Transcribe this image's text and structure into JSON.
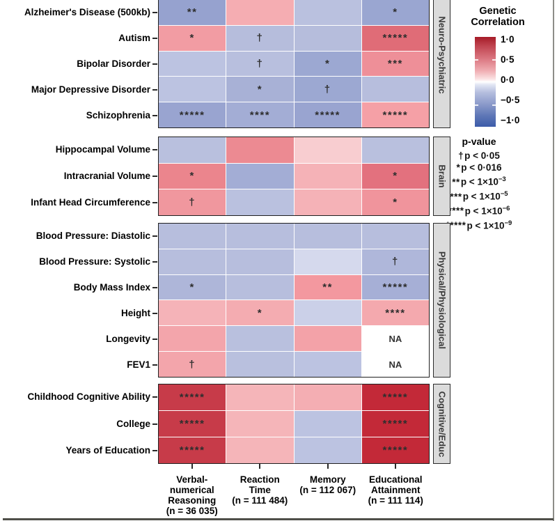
{
  "chart_data": {
    "type": "heatmap",
    "colorbar": {
      "title": "Genetic\nCorrelation",
      "ticks": [
        "1·0",
        "0·5",
        "0·0",
        "−0·5",
        "−1·0"
      ],
      "domain": [
        -1,
        1
      ],
      "high_color": "#A61B27",
      "mid_color": "#FFFFFF",
      "low_color": "#3D5CA9"
    },
    "pvalue_legend": {
      "title": "p-value",
      "entries": [
        {
          "sym": "†",
          "text": "p < 0·05",
          "exp": ""
        },
        {
          "sym": "*",
          "text": "p < 0·016",
          "exp": ""
        },
        {
          "sym": "**",
          "text": "p < 1×10",
          "exp": "−3"
        },
        {
          "sym": "***",
          "text": "p < 1×10",
          "exp": "−5"
        },
        {
          "sym": "****",
          "text": "p < 1×10",
          "exp": "−6"
        },
        {
          "sym": "*****",
          "text": "p < 1×10",
          "exp": "−9"
        }
      ]
    },
    "columns": [
      {
        "label": "Verbal-\nnumerical\nReasoning\n(n = 36 035)"
      },
      {
        "label": "Reaction\nTime\n(n = 111 484)"
      },
      {
        "label": "Memory\n(n = 112 067)"
      },
      {
        "label": "Educational\nAttainment\n(n = 111 114)"
      }
    ],
    "panels": [
      {
        "name": "Neuro-Psychiatric",
        "rows": [
          {
            "label": "Alzheimer's Disease (500kb)",
            "cells": [
              {
                "value": -0.32,
                "mark": "**",
                "color": "#96A2CF"
              },
              {
                "value": 0.22,
                "mark": "",
                "color": "#F5ADB2"
              },
              {
                "value": -0.15,
                "mark": "",
                "color": "#BAC1DF"
              },
              {
                "value": -0.3,
                "mark": "*",
                "color": "#9AA6D1"
              }
            ]
          },
          {
            "label": "Autism",
            "cells": [
              {
                "value": 0.3,
                "mark": "*",
                "color": "#F29CA3"
              },
              {
                "value": -0.17,
                "mark": "†",
                "color": "#B6BDDC"
              },
              {
                "value": -0.17,
                "mark": "",
                "color": "#B6BDDC"
              },
              {
                "value": 0.47,
                "mark": "*****",
                "color": "#E06C77"
              }
            ]
          },
          {
            "label": "Bipolar Disorder",
            "cells": [
              {
                "value": -0.14,
                "mark": "",
                "color": "#BCC3E1"
              },
              {
                "value": -0.16,
                "mark": "†",
                "color": "#B8BFDE"
              },
              {
                "value": -0.29,
                "mark": "*",
                "color": "#9CA8D2"
              },
              {
                "value": 0.33,
                "mark": "***",
                "color": "#EE8F98"
              }
            ]
          },
          {
            "label": "Major Depressive Disorder",
            "cells": [
              {
                "value": -0.14,
                "mark": "",
                "color": "#BCC3E1"
              },
              {
                "value": -0.24,
                "mark": "*",
                "color": "#A8B1D6"
              },
              {
                "value": -0.29,
                "mark": "†",
                "color": "#9CA8D2"
              },
              {
                "value": -0.17,
                "mark": "",
                "color": "#B7BEDD"
              }
            ]
          },
          {
            "label": "Schizophrenia",
            "cells": [
              {
                "value": -0.31,
                "mark": "*****",
                "color": "#99A4D0"
              },
              {
                "value": -0.26,
                "mark": "****",
                "color": "#A3ADD5"
              },
              {
                "value": -0.31,
                "mark": "*****",
                "color": "#99A4D0"
              },
              {
                "value": 0.28,
                "mark": "*****",
                "color": "#F5A0A6"
              }
            ]
          }
        ]
      },
      {
        "name": "Brain",
        "rows": [
          {
            "label": "Hippocampal Volume",
            "cells": [
              {
                "value": -0.15,
                "mark": "",
                "color": "#B9C0DE"
              },
              {
                "value": 0.38,
                "mark": "",
                "color": "#EC8A92"
              },
              {
                "value": 0.1,
                "mark": "",
                "color": "#F8CDD0"
              },
              {
                "value": -0.15,
                "mark": "",
                "color": "#B9C0DE"
              }
            ]
          },
          {
            "label": "Intracranial Volume",
            "cells": [
              {
                "value": 0.4,
                "mark": "*",
                "color": "#EB858D"
              },
              {
                "value": -0.26,
                "mark": "",
                "color": "#A3ADD5"
              },
              {
                "value": 0.2,
                "mark": "",
                "color": "#F5B2B7"
              },
              {
                "value": 0.46,
                "mark": "*",
                "color": "#E3717E"
              }
            ]
          },
          {
            "label": "Infant Head Circumference",
            "cells": [
              {
                "value": 0.31,
                "mark": "†",
                "color": "#F0979E"
              },
              {
                "value": -0.15,
                "mark": "",
                "color": "#BAC1DF"
              },
              {
                "value": 0.2,
                "mark": "",
                "color": "#F5B2B7"
              },
              {
                "value": 0.32,
                "mark": "*",
                "color": "#F0949C"
              }
            ]
          }
        ]
      },
      {
        "name": "Physical/Physiological",
        "rows": [
          {
            "label": "Blood Pressure: Diastolic",
            "cells": [
              {
                "value": -0.17,
                "mark": "",
                "color": "#B7BEDD"
              },
              {
                "value": -0.17,
                "mark": "",
                "color": "#B7BEDD"
              },
              {
                "value": -0.17,
                "mark": "",
                "color": "#B7BEDD"
              },
              {
                "value": -0.17,
                "mark": "",
                "color": "#B7BEDD"
              }
            ]
          },
          {
            "label": "Blood Pressure: Systolic",
            "cells": [
              {
                "value": -0.17,
                "mark": "",
                "color": "#B7BEDD"
              },
              {
                "value": -0.17,
                "mark": "",
                "color": "#B7BEDD"
              },
              {
                "value": -0.06,
                "mark": "",
                "color": "#D5D9ED"
              },
              {
                "value": -0.22,
                "mark": "†",
                "color": "#AFB7DA"
              }
            ]
          },
          {
            "label": "Body Mass Index",
            "cells": [
              {
                "value": -0.21,
                "mark": "*",
                "color": "#AEB6D9"
              },
              {
                "value": -0.17,
                "mark": "",
                "color": "#B7BEDD"
              },
              {
                "value": 0.3,
                "mark": "**",
                "color": "#F3989F"
              },
              {
                "value": -0.25,
                "mark": "*****",
                "color": "#A6AFD6"
              }
            ]
          },
          {
            "label": "Height",
            "cells": [
              {
                "value": 0.19,
                "mark": "",
                "color": "#F5B3B8"
              },
              {
                "value": 0.22,
                "mark": "*",
                "color": "#F4ACB1"
              },
              {
                "value": -0.09,
                "mark": "",
                "color": "#CBD0E8"
              },
              {
                "value": 0.24,
                "mark": "****",
                "color": "#F4A9AE"
              }
            ]
          },
          {
            "label": "Longevity",
            "cells": [
              {
                "value": 0.26,
                "mark": "",
                "color": "#F3A5AB"
              },
              {
                "value": -0.15,
                "mark": "",
                "color": "#B9C0DE"
              },
              {
                "value": 0.26,
                "mark": "",
                "color": "#F3A2A8"
              },
              {
                "value": null,
                "mark": "NA",
                "color": "#FFFFFF"
              }
            ]
          },
          {
            "label": "FEV1",
            "cells": [
              {
                "value": 0.26,
                "mark": "†",
                "color": "#F3A5AB"
              },
              {
                "value": -0.15,
                "mark": "",
                "color": "#B9C0DE"
              },
              {
                "value": -0.16,
                "mark": "",
                "color": "#BCC3E1"
              },
              {
                "value": null,
                "mark": "NA",
                "color": "#FFFFFF"
              }
            ]
          }
        ]
      },
      {
        "name": "Cognitive/Educ",
        "rows": [
          {
            "label": "Childhood Cognitive Ability",
            "cells": [
              {
                "value": 0.72,
                "mark": "*****",
                "color": "#C73B49"
              },
              {
                "value": 0.19,
                "mark": "",
                "color": "#F5B5B9"
              },
              {
                "value": 0.22,
                "mark": "",
                "color": "#F4AEB3"
              },
              {
                "value": 0.8,
                "mark": "*****",
                "color": "#C32938"
              }
            ]
          },
          {
            "label": "College",
            "cells": [
              {
                "value": 0.72,
                "mark": "*****",
                "color": "#C73B49"
              },
              {
                "value": 0.19,
                "mark": "",
                "color": "#F5B5B9"
              },
              {
                "value": -0.15,
                "mark": "",
                "color": "#BCC3E1"
              },
              {
                "value": 0.8,
                "mark": "*****",
                "color": "#C32938"
              }
            ]
          },
          {
            "label": "Years of Education",
            "cells": [
              {
                "value": 0.72,
                "mark": "*****",
                "color": "#C73B49"
              },
              {
                "value": 0.19,
                "mark": "",
                "color": "#F5B5B9"
              },
              {
                "value": -0.15,
                "mark": "",
                "color": "#BCC3E1"
              },
              {
                "value": 0.8,
                "mark": "*****",
                "color": "#C32938"
              }
            ]
          }
        ]
      }
    ]
  }
}
